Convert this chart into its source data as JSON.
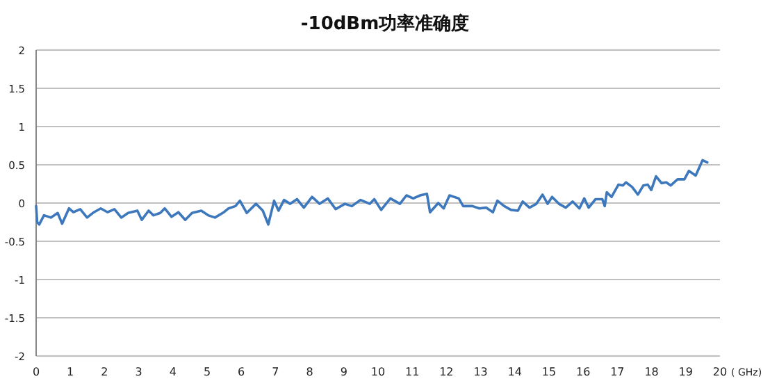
{
  "chart_data": {
    "type": "line",
    "title": "-10dBm功率准确度",
    "xlabel": "( GHz)",
    "xlim": [
      0,
      20
    ],
    "xticks": [
      0,
      1,
      2,
      3,
      4,
      5,
      6,
      7,
      8,
      9,
      10,
      11,
      12,
      13,
      14,
      15,
      16,
      17,
      18,
      19,
      20
    ],
    "ylim": [
      -2,
      2
    ],
    "yticks": [
      -2,
      -1.5,
      -1,
      -0.5,
      0,
      0.5,
      1,
      1.5,
      2
    ],
    "grid": "y",
    "marker": "none",
    "line_style": "solid",
    "series": [
      {
        "color": "#3d78bd",
        "x": [
          0,
          0.03,
          0.09,
          0.23,
          0.43,
          0.63,
          0.76,
          0.96,
          1.09,
          1.29,
          1.49,
          1.69,
          1.89,
          2.09,
          2.29,
          2.49,
          2.69,
          2.96,
          3.09,
          3.29,
          3.43,
          3.63,
          3.76,
          3.96,
          4.16,
          4.36,
          4.56,
          4.83,
          5.03,
          5.23,
          5.49,
          5.63,
          5.83,
          5.96,
          6.16,
          6.43,
          6.63,
          6.79,
          6.96,
          7.09,
          7.25,
          7.43,
          7.63,
          7.83,
          8.07,
          8.29,
          8.53,
          8.76,
          9.03,
          9.23,
          9.49,
          9.76,
          9.89,
          10.09,
          10.36,
          10.64,
          10.83,
          11.03,
          11.23,
          11.43,
          11.52,
          11.76,
          11.92,
          12.09,
          12.36,
          12.49,
          12.76,
          12.96,
          13.16,
          13.36,
          13.49,
          13.69,
          13.89,
          14.09,
          14.23,
          14.43,
          14.63,
          14.81,
          14.96,
          15.09,
          15.29,
          15.49,
          15.69,
          15.89,
          16.03,
          16.16,
          16.36,
          16.56,
          16.63,
          16.69,
          16.83,
          17.03,
          17.16,
          17.25,
          17.43,
          17.6,
          17.76,
          17.89,
          17.99,
          18.13,
          18.29,
          18.43,
          18.56,
          18.76,
          18.96,
          19.09,
          19.29,
          19.49,
          19.63
        ],
        "values": [
          -0.04,
          -0.25,
          -0.28,
          -0.16,
          -0.19,
          -0.13,
          -0.27,
          -0.07,
          -0.12,
          -0.08,
          -0.19,
          -0.12,
          -0.07,
          -0.12,
          -0.08,
          -0.19,
          -0.13,
          -0.1,
          -0.22,
          -0.1,
          -0.16,
          -0.13,
          -0.07,
          -0.18,
          -0.12,
          -0.22,
          -0.13,
          -0.1,
          -0.16,
          -0.19,
          -0.12,
          -0.07,
          -0.04,
          0.03,
          -0.13,
          -0.01,
          -0.1,
          -0.28,
          0.03,
          -0.1,
          0.04,
          -0.01,
          0.05,
          -0.06,
          0.08,
          -0.01,
          0.06,
          -0.08,
          -0.01,
          -0.04,
          0.04,
          -0.01,
          0.05,
          -0.09,
          0.06,
          -0.01,
          0.1,
          0.06,
          0.1,
          0.12,
          -0.12,
          0,
          -0.07,
          0.1,
          0.06,
          -0.04,
          -0.04,
          -0.07,
          -0.06,
          -0.12,
          0.03,
          -0.04,
          -0.09,
          -0.1,
          0.02,
          -0.06,
          -0.01,
          0.11,
          -0.01,
          0.08,
          -0.01,
          -0.06,
          0.02,
          -0.07,
          0.06,
          -0.06,
          0.05,
          0.05,
          -0.04,
          0.14,
          0.08,
          0.24,
          0.23,
          0.27,
          0.21,
          0.11,
          0.23,
          0.24,
          0.17,
          0.35,
          0.26,
          0.27,
          0.23,
          0.31,
          0.31,
          0.42,
          0.36,
          0.56,
          0.53
        ]
      }
    ]
  }
}
